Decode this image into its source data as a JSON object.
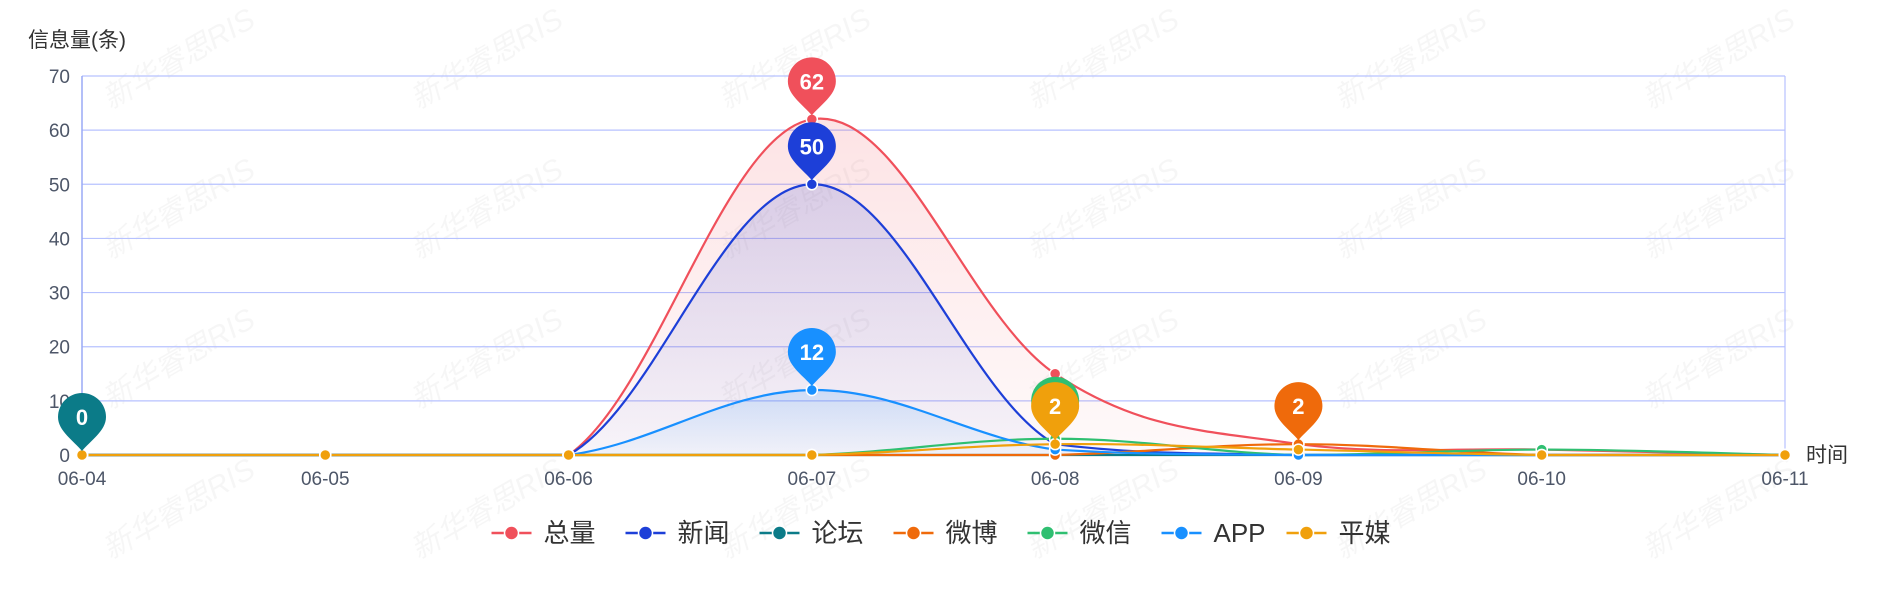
{
  "chart_data": {
    "type": "line",
    "title": "",
    "ylabel": "信息量(条)",
    "xlabel": "时间",
    "categories": [
      "06-04",
      "06-05",
      "06-06",
      "06-07",
      "06-08",
      "06-09",
      "06-10",
      "06-11"
    ],
    "ylim": [
      0,
      70
    ],
    "yticks": [
      0,
      10,
      20,
      30,
      40,
      50,
      60,
      70
    ],
    "grid": true,
    "legend_position": "bottom",
    "watermark": "新华睿思RIS",
    "series": [
      {
        "name": "总量",
        "color": "#f0505b",
        "values": [
          0,
          0,
          0,
          62,
          15,
          2,
          1,
          0
        ],
        "area": true
      },
      {
        "name": "新闻",
        "color": "#1d3fd8",
        "values": [
          0,
          0,
          0,
          50,
          2,
          0,
          0,
          0
        ],
        "area": true
      },
      {
        "name": "论坛",
        "color": "#0b7b88",
        "values": [
          0,
          0,
          0,
          0,
          0,
          0,
          0,
          0
        ]
      },
      {
        "name": "微博",
        "color": "#ef6a0b",
        "values": [
          0,
          0,
          0,
          0,
          0,
          2,
          0,
          0
        ]
      },
      {
        "name": "微信",
        "color": "#2fbf71",
        "values": [
          0,
          0,
          0,
          0,
          3,
          0,
          1,
          0
        ]
      },
      {
        "name": "APP",
        "color": "#1890ff",
        "values": [
          0,
          0,
          0,
          12,
          1,
          0,
          0,
          0
        ],
        "area": true
      },
      {
        "name": "平媒",
        "color": "#f0a00c",
        "values": [
          0,
          0,
          0,
          0,
          2,
          1,
          0,
          0
        ]
      }
    ],
    "markers": [
      {
        "series": "总量",
        "category": "06-07",
        "label": "62"
      },
      {
        "series": "新闻",
        "category": "06-07",
        "label": "50"
      },
      {
        "series": "APP",
        "category": "06-07",
        "label": "12"
      },
      {
        "series": "论坛",
        "category": "06-04",
        "label": "0"
      },
      {
        "series": "微信",
        "category": "06-08",
        "label": "3"
      },
      {
        "series": "平媒",
        "category": "06-08",
        "label": "2"
      },
      {
        "series": "微博",
        "category": "06-09",
        "label": "2"
      }
    ]
  }
}
